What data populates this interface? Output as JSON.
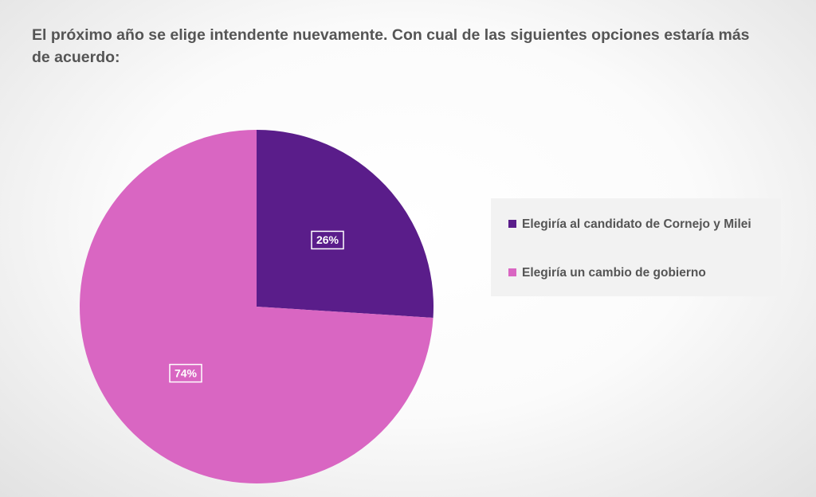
{
  "chart_data": {
    "type": "pie",
    "title": "El próximo año se elige intendente nuevamente. Con cual de las siguientes opciones estaría más de acuerdo:",
    "categories": [
      "Elegiría al candidato de Cornejo y Milei",
      "Elegiría un cambio de gobierno"
    ],
    "values": [
      26,
      74
    ],
    "value_labels": [
      "26%",
      "74%"
    ],
    "colors": [
      "#5a1d8a",
      "#d966c2"
    ],
    "legend": "right"
  }
}
